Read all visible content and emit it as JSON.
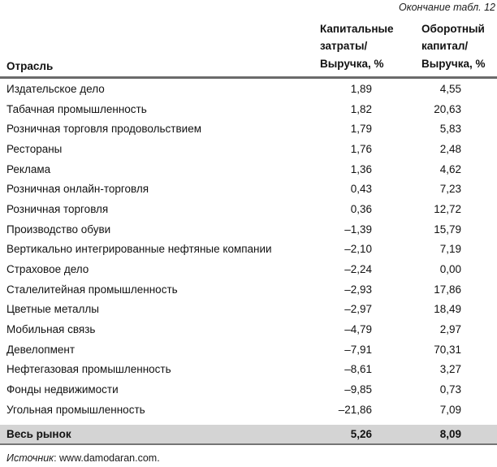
{
  "meta": {
    "continuation": "Окончание табл. 12"
  },
  "table": {
    "header": {
      "col1": "Отрасль",
      "col2_lines": [
        "Капитальные",
        "затраты/",
        "Выручка, %"
      ],
      "col3_lines": [
        "Оборотный",
        "капитал/",
        "Выручка, %"
      ]
    },
    "rows": [
      {
        "industry": "Издательское дело",
        "capex": "1,89",
        "wc": "4,55"
      },
      {
        "industry": "Табачная промышленность",
        "capex": "1,82",
        "wc": "20,63"
      },
      {
        "industry": "Розничная торговля продовольствием",
        "capex": "1,79",
        "wc": "5,83"
      },
      {
        "industry": "Рестораны",
        "capex": "1,76",
        "wc": "2,48"
      },
      {
        "industry": "Реклама",
        "capex": "1,36",
        "wc": "4,62"
      },
      {
        "industry": "Розничная онлайн-торговля",
        "capex": "0,43",
        "wc": "7,23"
      },
      {
        "industry": "Розничная торговля",
        "capex": "0,36",
        "wc": "12,72"
      },
      {
        "industry": "Производство обуви",
        "capex": "–1,39",
        "wc": "15,79"
      },
      {
        "industry": "Вертикально интегрированные нефтяные компании",
        "capex": "–2,10",
        "wc": "7,19"
      },
      {
        "industry": "Страховое дело",
        "capex": "–2,24",
        "wc": "0,00"
      },
      {
        "industry": "Сталелитейная промышленность",
        "capex": "–2,93",
        "wc": "17,86"
      },
      {
        "industry": "Цветные металлы",
        "capex": "–2,97",
        "wc": "18,49"
      },
      {
        "industry": "Мобильная связь",
        "capex": "–4,79",
        "wc": "2,97"
      },
      {
        "industry": "Девелопмент",
        "capex": "–7,91",
        "wc": "70,31"
      },
      {
        "industry": "Нефтегазовая промышленность",
        "capex": "–8,61",
        "wc": "3,27"
      },
      {
        "industry": "Фонды недвижимости",
        "capex": "–9,85",
        "wc": "0,73"
      },
      {
        "industry": "Угольная промышленность",
        "capex": "–21,86",
        "wc": "7,09"
      }
    ],
    "summary": {
      "industry": "Весь рынок",
      "capex": "5,26",
      "wc": "8,09"
    }
  },
  "footer": {
    "source_label": "Источник",
    "source_rest": ": www.damodaran.com."
  },
  "colors": {
    "summary_bg": "#d4d4d4",
    "header_rule": "#6b6b6b",
    "bottom_rule": "#757575",
    "text": "#121212"
  }
}
